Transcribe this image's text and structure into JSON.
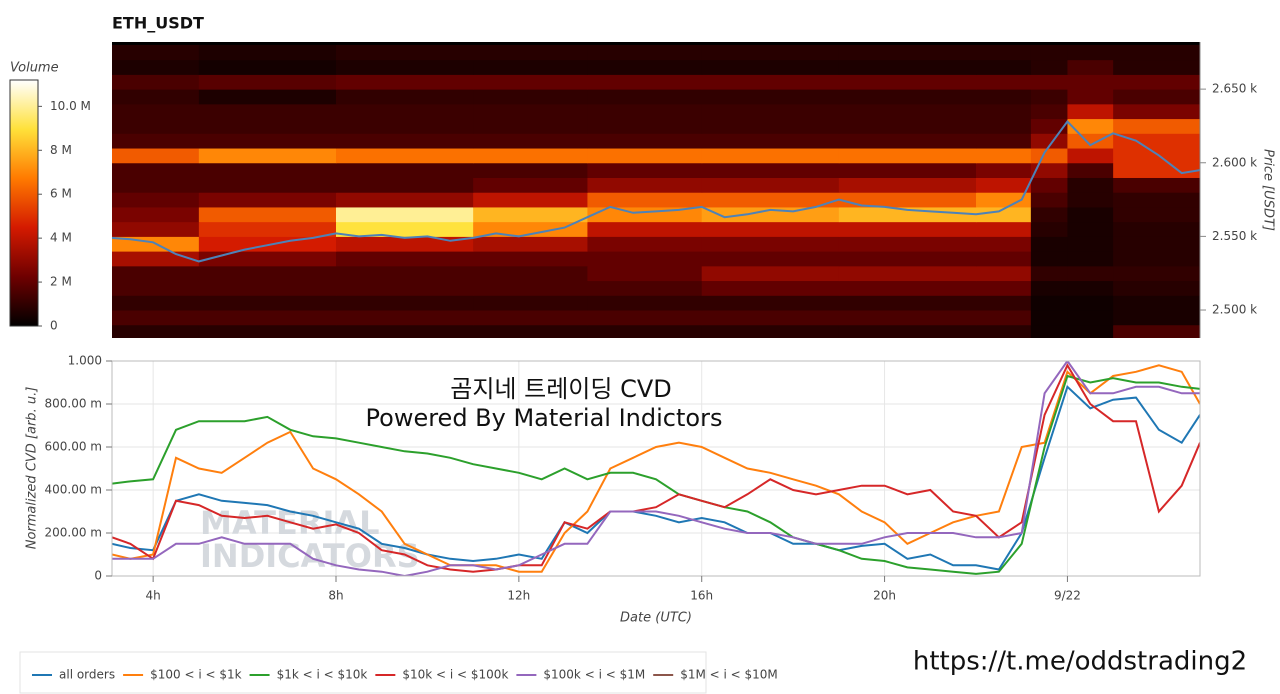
{
  "chart_data": [
    {
      "type": "heatmap",
      "title": "ETH_USDT",
      "x_edges": [
        3.1,
        5,
        8,
        11,
        13.5,
        16,
        19,
        22,
        23.2,
        24,
        25,
        26.9
      ],
      "y_edges": [
        2480,
        2490,
        2500,
        2510,
        2520,
        2530,
        2540,
        2550,
        2560,
        2570,
        2580,
        2590,
        2600,
        2610,
        2620,
        2630,
        2640,
        2650,
        2660,
        2670,
        2680
      ],
      "z": [
        [
          800000,
          800000,
          800000,
          800000,
          800000,
          800000,
          800000,
          800000,
          300000,
          300000,
          1500000
        ],
        [
          1500000,
          1500000,
          1500000,
          1500000,
          1500000,
          1500000,
          1500000,
          1500000,
          300000,
          300000,
          500000
        ],
        [
          1000000,
          1000000,
          1000000,
          1000000,
          1000000,
          1000000,
          1000000,
          1000000,
          300000,
          300000,
          500000
        ],
        [
          1500000,
          1500000,
          1500000,
          1500000,
          1500000,
          2000000,
          2000000,
          2000000,
          500000,
          500000,
          800000
        ],
        [
          1500000,
          1500000,
          1500000,
          1500000,
          2000000,
          3000000,
          3000000,
          3000000,
          1000000,
          1000000,
          1000000
        ],
        [
          3500000,
          2500000,
          2000000,
          2000000,
          2000000,
          2000000,
          2000000,
          2000000,
          500000,
          500000,
          800000
        ],
        [
          7000000,
          4500000,
          4000000,
          3500000,
          2500000,
          2500000,
          2500000,
          2500000,
          500000,
          500000,
          800000
        ],
        [
          3000000,
          5000000,
          9000000,
          7000000,
          4000000,
          4000000,
          4000000,
          4000000,
          800000,
          500000,
          800000
        ],
        [
          2500000,
          6000000,
          10000000,
          8000000,
          7000000,
          7500000,
          8000000,
          8000000,
          1000000,
          500000,
          1000000
        ],
        [
          2000000,
          2500000,
          3000000,
          4000000,
          6000000,
          6000000,
          6000000,
          7000000,
          1500000,
          800000,
          1000000
        ],
        [
          1500000,
          1500000,
          1500000,
          2000000,
          3000000,
          3000000,
          3500000,
          4000000,
          2000000,
          800000,
          1500000
        ],
        [
          1500000,
          1500000,
          1500000,
          1500000,
          2000000,
          2000000,
          2000000,
          2500000,
          3000000,
          1500000,
          5000000
        ],
        [
          6000000,
          7000000,
          6500000,
          6500000,
          6500000,
          6500000,
          6500000,
          6500000,
          6000000,
          4000000,
          5000000
        ],
        [
          1500000,
          1500000,
          1500000,
          1500000,
          1500000,
          1500000,
          1500000,
          1500000,
          3000000,
          6000000,
          5000000
        ],
        [
          1200000,
          1200000,
          1200000,
          1200000,
          1200000,
          1200000,
          1200000,
          1200000,
          2000000,
          7000000,
          6000000
        ],
        [
          1200000,
          1200000,
          1200000,
          1200000,
          1200000,
          1200000,
          1200000,
          1200000,
          1500000,
          4000000,
          2500000
        ],
        [
          1000000,
          600000,
          1000000,
          1000000,
          1000000,
          1000000,
          1000000,
          1000000,
          1200000,
          2000000,
          1500000
        ],
        [
          1500000,
          1800000,
          2000000,
          2000000,
          2000000,
          2000000,
          2000000,
          2000000,
          2000000,
          2000000,
          2000000
        ],
        [
          600000,
          400000,
          600000,
          600000,
          600000,
          600000,
          600000,
          600000,
          800000,
          1500000,
          800000
        ],
        [
          800000,
          600000,
          800000,
          800000,
          800000,
          800000,
          800000,
          800000,
          800000,
          800000,
          800000
        ]
      ],
      "colorscale": [
        "#000000",
        "#6e0000",
        "#d41a00",
        "#ff7a00",
        "#ffe13a",
        "#ffffff"
      ],
      "clim": [
        0,
        11200000
      ],
      "colorbar_title": "Volume",
      "colorbar_ticks": [
        0,
        {
          "value": 2000000,
          "label": "2 M"
        },
        {
          "value": 4000000,
          "label": "4 M"
        },
        {
          "value": 6000000,
          "label": "6 M"
        },
        {
          "value": 8000000,
          "label": "8 M"
        },
        {
          "value": 10000000,
          "label": "10.0 M"
        }
      ],
      "x": [
        3.1,
        3.5,
        4,
        4.5,
        5,
        5.5,
        6,
        6.5,
        7,
        7.5,
        8,
        8.5,
        9,
        9.5,
        10,
        10.5,
        11,
        11.5,
        12,
        12.5,
        13,
        13.5,
        14,
        14.5,
        15,
        15.5,
        16,
        16.5,
        17,
        17.5,
        18,
        18.5,
        19,
        19.5,
        20,
        20.5,
        21,
        21.5,
        22,
        22.5,
        23,
        23.5,
        24,
        24.5,
        25,
        25.5,
        26,
        26.5,
        26.9
      ],
      "price_line": {
        "color": "#4d82b8",
        "values": [
          2549,
          2548,
          2546,
          2538,
          2533,
          2537,
          2541,
          2544,
          2547,
          2549,
          2552,
          2550,
          2551,
          2549,
          2550,
          2547,
          2549,
          2552,
          2550,
          2553,
          2556,
          2563,
          2570,
          2566,
          2567,
          2568,
          2570,
          2563,
          2565,
          2568,
          2567,
          2570,
          2575,
          2571,
          2570,
          2568,
          2567,
          2566,
          2565,
          2567,
          2575,
          2607,
          2628,
          2612,
          2620,
          2615,
          2605,
          2593,
          2595
        ]
      },
      "xlim": [
        3.1,
        26.9
      ],
      "ylim": [
        2481,
        2682
      ],
      "yticks": [
        {
          "value": 2500,
          "label": "2.500 k"
        },
        {
          "value": 2550,
          "label": "2.550 k"
        },
        {
          "value": 2600,
          "label": "2.600 k"
        },
        {
          "value": 2650,
          "label": "2.650 k"
        }
      ],
      "y_label": "Price [USDT]"
    },
    {
      "type": "line",
      "x": [
        3.1,
        3.5,
        4,
        4.5,
        5,
        5.5,
        6,
        6.5,
        7,
        7.5,
        8,
        8.5,
        9,
        9.5,
        10,
        10.5,
        11,
        11.5,
        12,
        12.5,
        13,
        13.5,
        14,
        14.5,
        15,
        15.5,
        16,
        16.5,
        17,
        17.5,
        18,
        18.5,
        19,
        19.5,
        20,
        20.5,
        21,
        21.5,
        22,
        22.5,
        23,
        23.5,
        24,
        24.5,
        25,
        25.5,
        26,
        26.5,
        26.9
      ],
      "series": [
        {
          "name": "all orders",
          "color": "#1f77b4",
          "values": [
            0.15,
            0.13,
            0.12,
            0.35,
            0.38,
            0.35,
            0.34,
            0.33,
            0.3,
            0.28,
            0.25,
            0.22,
            0.15,
            0.13,
            0.1,
            0.08,
            0.07,
            0.08,
            0.1,
            0.08,
            0.25,
            0.2,
            0.3,
            0.3,
            0.28,
            0.25,
            0.27,
            0.25,
            0.2,
            0.2,
            0.15,
            0.15,
            0.12,
            0.14,
            0.15,
            0.08,
            0.1,
            0.05,
            0.05,
            0.03,
            0.2,
            0.55,
            0.88,
            0.78,
            0.82,
            0.83,
            0.68,
            0.62,
            0.75
          ]
        },
        {
          "name": "$100 < i < $1k",
          "color": "#ff7f0e",
          "values": [
            0.1,
            0.08,
            0.1,
            0.55,
            0.5,
            0.48,
            0.55,
            0.62,
            0.67,
            0.5,
            0.45,
            0.38,
            0.3,
            0.15,
            0.1,
            0.05,
            0.05,
            0.05,
            0.02,
            0.02,
            0.2,
            0.3,
            0.5,
            0.55,
            0.6,
            0.62,
            0.6,
            0.55,
            0.5,
            0.48,
            0.45,
            0.42,
            0.38,
            0.3,
            0.25,
            0.15,
            0.2,
            0.25,
            0.28,
            0.3,
            0.6,
            0.62,
            0.95,
            0.85,
            0.93,
            0.95,
            0.98,
            0.95,
            0.8
          ]
        },
        {
          "name": "$1k < i < $10k",
          "color": "#2ca02c",
          "values": [
            0.43,
            0.44,
            0.45,
            0.68,
            0.72,
            0.72,
            0.72,
            0.74,
            0.68,
            0.65,
            0.64,
            0.62,
            0.6,
            0.58,
            0.57,
            0.55,
            0.52,
            0.5,
            0.48,
            0.45,
            0.5,
            0.45,
            0.48,
            0.48,
            0.45,
            0.38,
            0.35,
            0.32,
            0.3,
            0.25,
            0.18,
            0.15,
            0.12,
            0.08,
            0.07,
            0.04,
            0.03,
            0.02,
            0.01,
            0.02,
            0.15,
            0.6,
            0.93,
            0.9,
            0.92,
            0.9,
            0.9,
            0.88,
            0.87
          ]
        },
        {
          "name": "$10k < i < $100k",
          "color": "#d62728",
          "values": [
            0.18,
            0.15,
            0.08,
            0.35,
            0.33,
            0.28,
            0.27,
            0.28,
            0.25,
            0.22,
            0.24,
            0.2,
            0.12,
            0.1,
            0.05,
            0.03,
            0.02,
            0.03,
            0.05,
            0.05,
            0.25,
            0.22,
            0.3,
            0.3,
            0.32,
            0.38,
            0.35,
            0.32,
            0.38,
            0.45,
            0.4,
            0.38,
            0.4,
            0.42,
            0.42,
            0.38,
            0.4,
            0.3,
            0.28,
            0.18,
            0.25,
            0.75,
            0.98,
            0.8,
            0.72,
            0.72,
            0.3,
            0.42,
            0.62
          ]
        },
        {
          "name": "$100k < i < $1M",
          "color": "#9467bd",
          "values": [
            0.08,
            0.08,
            0.08,
            0.15,
            0.15,
            0.18,
            0.15,
            0.15,
            0.15,
            0.08,
            0.05,
            0.03,
            0.02,
            0,
            0.02,
            0.05,
            0.05,
            0.03,
            0.05,
            0.1,
            0.15,
            0.15,
            0.3,
            0.3,
            0.3,
            0.28,
            0.25,
            0.22,
            0.2,
            0.2,
            0.18,
            0.15,
            0.15,
            0.15,
            0.18,
            0.2,
            0.2,
            0.2,
            0.18,
            0.18,
            0.2,
            0.85,
            1,
            0.85,
            0.85,
            0.88,
            0.88,
            0.85,
            0.85
          ]
        },
        {
          "name": "$1M < i < $10M",
          "color": "#8c564b",
          "values": [
            null,
            null,
            null,
            null,
            null,
            null,
            null,
            null,
            null,
            null,
            null,
            null,
            null,
            null,
            null,
            null,
            null,
            null,
            null,
            null,
            null,
            null,
            null,
            null,
            null,
            null,
            null,
            null,
            null,
            null,
            null,
            null,
            null,
            null,
            null,
            null,
            null,
            null,
            null,
            null,
            null,
            null,
            null,
            null,
            null,
            null,
            null,
            null,
            null
          ]
        }
      ],
      "xlim": [
        3.1,
        26.9
      ],
      "xticks": [
        {
          "value": 4,
          "label": "4h"
        },
        {
          "value": 8,
          "label": "8h"
        },
        {
          "value": 12,
          "label": "12h"
        },
        {
          "value": 16,
          "label": "16h"
        },
        {
          "value": 20,
          "label": "20h"
        },
        {
          "value": 24,
          "label": "9/22"
        }
      ],
      "ylim": [
        0,
        1
      ],
      "yticks": [
        0,
        {
          "value": 0.2,
          "label": "200.00 m"
        },
        {
          "value": 0.4,
          "label": "400.00 m"
        },
        {
          "value": 0.6,
          "label": "600.00 m"
        },
        {
          "value": 0.8,
          "label": "800.00 m"
        },
        {
          "value": 1,
          "label": "1.000"
        }
      ],
      "x_label": "Date (UTC)",
      "y_label": "Normalized CVD [arb. u.]",
      "grid": true,
      "legend": "bottom-left"
    }
  ],
  "annotations": {
    "title": "곰지네 트레이딩 CVD",
    "subtitle": "Powered By Material Indictors",
    "watermark": [
      "MATERIAL",
      "INDICATORS"
    ],
    "link": "https://t.me/oddstrading2"
  }
}
